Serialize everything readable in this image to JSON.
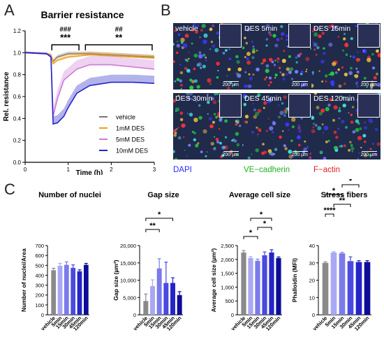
{
  "panels": {
    "a": "A",
    "b": "B",
    "c": "C"
  },
  "chart_a": {
    "title": "Barrier resistance",
    "ylabel": "Rel. resistance",
    "xlabel": "Time (h)",
    "xticks": [
      "0",
      "1",
      "2",
      "3"
    ],
    "yticks": [
      "0.0",
      "0.2",
      "0.4",
      "0.6",
      "0.8",
      "1.0",
      "1.2"
    ],
    "sig": {
      "left_hash": "###",
      "left_star": "***",
      "right_hash": "##",
      "right_star": "**"
    },
    "legend": [
      "vehicle",
      "1mM DES",
      "5mM DES",
      "10mM DES"
    ]
  },
  "colors": {
    "vehicle": "#777777",
    "des1": "#f0a020",
    "des5": "#d07ad8",
    "des10": "#2525c8",
    "bar_shades": [
      "#8a8a8a",
      "#a8a8f4",
      "#7a7aec",
      "#4a4ae0",
      "#2424c8",
      "#0c0c96"
    ]
  },
  "chart_data": [
    {
      "type": "line",
      "title": "Barrier resistance",
      "xlabel": "Time (h)",
      "ylabel": "Rel. resistance",
      "xlim": [
        0,
        3
      ],
      "ylim": [
        0,
        1.2
      ],
      "series": [
        {
          "name": "vehicle",
          "x": [
            0,
            0.5,
            0.6,
            0.65,
            0.75,
            1.0,
            1.5,
            2.0,
            2.5,
            3.0
          ],
          "y": [
            1.0,
            0.99,
            0.98,
            0.92,
            0.96,
            0.99,
            0.99,
            0.98,
            0.97,
            0.96
          ]
        },
        {
          "name": "1mM DES",
          "x": [
            0,
            0.5,
            0.6,
            0.65,
            0.75,
            1.0,
            1.5,
            2.0,
            2.5,
            3.0
          ],
          "y": [
            1.0,
            0.99,
            0.98,
            0.9,
            0.93,
            0.96,
            0.98,
            0.97,
            0.96,
            0.95
          ]
        },
        {
          "name": "5mM DES",
          "x": [
            0,
            0.5,
            0.6,
            0.65,
            0.75,
            0.9,
            1.2,
            1.5,
            2.0,
            2.5,
            3.0
          ],
          "y": [
            1.0,
            0.99,
            0.97,
            0.42,
            0.58,
            0.75,
            0.85,
            0.89,
            0.89,
            0.87,
            0.85
          ]
        },
        {
          "name": "10mM DES",
          "x": [
            0,
            0.5,
            0.6,
            0.65,
            0.75,
            0.9,
            1.0,
            1.2,
            1.5,
            2.0,
            2.5,
            3.0
          ],
          "y": [
            1.0,
            0.99,
            0.96,
            0.35,
            0.36,
            0.42,
            0.5,
            0.63,
            0.7,
            0.73,
            0.73,
            0.72
          ]
        }
      ]
    },
    {
      "type": "bar",
      "title": "Number of nuclei",
      "ylabel": "Number of nuclei/Area",
      "categories": [
        "vehicle",
        "5min",
        "15min",
        "30min",
        "45min",
        "120min"
      ],
      "values": [
        450,
        495,
        505,
        475,
        440,
        505
      ],
      "errors": [
        20,
        25,
        30,
        30,
        15,
        15
      ],
      "ylim": [
        0,
        700
      ],
      "yticks": [
        "0",
        "100",
        "200",
        "300",
        "400",
        "500",
        "600",
        "700"
      ],
      "annotations": []
    },
    {
      "type": "bar",
      "title": "Gap size",
      "ylabel": "Gap size (µm²)",
      "categories": [
        "vehicle",
        "5min",
        "15min",
        "30min",
        "45min",
        "120min"
      ],
      "values": [
        4000,
        8300,
        13400,
        9200,
        9200,
        5700
      ],
      "errors": [
        2000,
        1800,
        2800,
        6000,
        1500,
        1000
      ],
      "ylim": [
        0,
        20000
      ],
      "yticks": [
        "0",
        "5,000",
        "10,000",
        "15,000",
        "20,000"
      ],
      "annotations": [
        {
          "from": "vehicle",
          "to": "15min",
          "label": "**"
        },
        {
          "from": "vehicle",
          "to": "45min",
          "label": "*"
        }
      ]
    },
    {
      "type": "bar",
      "title": "Average cell size",
      "ylabel": "Average cell size (µm²)",
      "categories": [
        "vehicle",
        "5min",
        "15min",
        "30min",
        "45min",
        "120min"
      ],
      "values": [
        2250,
        2050,
        1950,
        2150,
        2250,
        2050
      ],
      "errors": [
        70,
        50,
        60,
        120,
        100,
        40
      ],
      "ylim": [
        0,
        2500
      ],
      "yticks": [
        "0",
        "500",
        "1,000",
        "1,500",
        "2,000",
        "2,500"
      ],
      "annotations": [
        {
          "from": "vehicle",
          "to": "15min",
          "label": "*"
        },
        {
          "from": "15min",
          "to": "45min",
          "label": "*"
        },
        {
          "from": "5min",
          "to": "45min",
          "label": "*"
        }
      ]
    },
    {
      "type": "bar",
      "title": "Stress fibers",
      "ylabel": "Phalloidin (MFI)",
      "categories": [
        "vehicle",
        "5min",
        "15min",
        "30min",
        "45min",
        "120min"
      ],
      "values": [
        30,
        36,
        35.5,
        31,
        30.5,
        30.5
      ],
      "errors": [
        0.6,
        0.5,
        0.6,
        2.5,
        0.8,
        0.8
      ],
      "ylim": [
        0,
        40
      ],
      "yticks": [
        "0",
        "10",
        "20",
        "30",
        "40"
      ],
      "annotations": [
        {
          "from": "vehicle",
          "to": "5min",
          "label": "****"
        },
        {
          "from": "5min",
          "to": "30min",
          "label": "**"
        },
        {
          "from": "vehicle",
          "to": "15min",
          "label": "*"
        },
        {
          "from": "15min",
          "to": "45min",
          "label": "*"
        },
        {
          "from": "5min",
          "to": "45min",
          "label": "**"
        },
        {
          "from": "5min",
          "to": "120min",
          "label": "****"
        },
        {
          "from": "vehicle",
          "to": "120min",
          "label": "**"
        }
      ]
    }
  ],
  "microscopy": {
    "tiles": [
      {
        "label": "vehicle",
        "scale": "200 µm"
      },
      {
        "label": "DES 5min",
        "scale": "200 µm"
      },
      {
        "label": "DES 15min",
        "scale": "200 µm"
      },
      {
        "label": "DES 30min",
        "scale": "200 µm"
      },
      {
        "label": "DES 45min",
        "scale": "200 µm"
      },
      {
        "label": "DES 120min",
        "scale": "200 µm"
      }
    ],
    "legend": {
      "dapi": "DAPI",
      "ve": "VE−cadherin",
      "factin": "F−actin"
    },
    "legend_colors": {
      "dapi": "#2a2aff",
      "ve": "#20b020",
      "factin": "#e02020"
    }
  }
}
